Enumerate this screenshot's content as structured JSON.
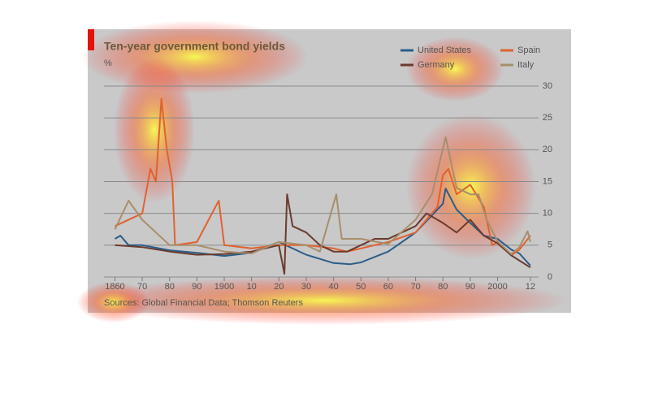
{
  "chart_data": {
    "type": "line",
    "title": "Ten-year government bond yields",
    "subtitle": "%",
    "source": "Sources: Global Financial Data; Thomson Reuters",
    "xlim": [
      1856,
      2015
    ],
    "xticks": [
      {
        "value": 1860,
        "label": "1860"
      },
      {
        "value": 1870,
        "label": "70"
      },
      {
        "value": 1880,
        "label": "80"
      },
      {
        "value": 1890,
        "label": "90"
      },
      {
        "value": 1900,
        "label": "1900"
      },
      {
        "value": 1910,
        "label": "10"
      },
      {
        "value": 1920,
        "label": "20"
      },
      {
        "value": 1930,
        "label": "30"
      },
      {
        "value": 1940,
        "label": "40"
      },
      {
        "value": 1950,
        "label": "50"
      },
      {
        "value": 1960,
        "label": "60"
      },
      {
        "value": 1970,
        "label": "70"
      },
      {
        "value": 1980,
        "label": "80"
      },
      {
        "value": 1990,
        "label": "90"
      },
      {
        "value": 2000,
        "label": "2000"
      },
      {
        "value": 2012,
        "label": "12"
      }
    ],
    "ylim": [
      0,
      30
    ],
    "yticks": [
      0,
      5,
      10,
      15,
      20,
      25,
      30
    ],
    "grid": true,
    "legend": "top-right",
    "series": [
      {
        "name": "United States",
        "color": "#2b5d8a",
        "x": [
          1860,
          1862,
          1865,
          1870,
          1880,
          1890,
          1900,
          1910,
          1920,
          1930,
          1940,
          1946,
          1950,
          1960,
          1970,
          1980,
          1981,
          1985,
          1990,
          1995,
          2000,
          2005,
          2008,
          2012
        ],
        "values": [
          6,
          6.5,
          5,
          5,
          4.2,
          3.8,
          3.3,
          3.8,
          5.5,
          3.5,
          2.2,
          2,
          2.3,
          4,
          7,
          11.5,
          13.9,
          10.6,
          8.5,
          6.5,
          6,
          4.3,
          3.7,
          1.8
        ]
      },
      {
        "name": "Spain",
        "color": "#e0622f",
        "x": [
          1860,
          1870,
          1873,
          1875,
          1877,
          1879,
          1881,
          1882,
          1890,
          1898,
          1900,
          1910,
          1920,
          1930,
          1940,
          1945,
          1950,
          1960,
          1970,
          1978,
          1980,
          1982,
          1985,
          1990,
          1995,
          1998,
          2000,
          2005,
          2008,
          2012
        ],
        "values": [
          8,
          10,
          17,
          15,
          28,
          20,
          15,
          5,
          5.5,
          12,
          5,
          4.5,
          5,
          5,
          4.5,
          4,
          4.5,
          5.5,
          7,
          11,
          16,
          17,
          13,
          14.5,
          11,
          5,
          5.5,
          3.4,
          4.3,
          6.5
        ]
      },
      {
        "name": "Germany",
        "color": "#6b3b2e",
        "x": [
          1860,
          1870,
          1880,
          1890,
          1900,
          1910,
          1920,
          1922,
          1923,
          1925,
          1930,
          1935,
          1940,
          1945,
          1950,
          1955,
          1960,
          1970,
          1974,
          1980,
          1985,
          1990,
          1995,
          2000,
          2005,
          2012
        ],
        "values": [
          5,
          4.7,
          4,
          3.5,
          3.6,
          4,
          5,
          0.5,
          13,
          8,
          7,
          5,
          4,
          4,
          5,
          6,
          6,
          8,
          10,
          8.5,
          7,
          9,
          6.5,
          5.3,
          3.4,
          1.5
        ]
      },
      {
        "name": "Italy",
        "color": "#a88e6b",
        "x": [
          1860,
          1865,
          1870,
          1880,
          1890,
          1900,
          1910,
          1920,
          1930,
          1935,
          1941,
          1943,
          1950,
          1960,
          1970,
          1976,
          1981,
          1983,
          1985,
          1990,
          1993,
          1996,
          2000,
          2005,
          2008,
          2011,
          2012
        ],
        "values": [
          7.5,
          12,
          9,
          5,
          5,
          4,
          3.7,
          5.5,
          5,
          4,
          13,
          6,
          6,
          5.2,
          9,
          13,
          22,
          18,
          14,
          13,
          13,
          9,
          5.6,
          3.6,
          4.7,
          7.2,
          5.5
        ]
      }
    ]
  }
}
